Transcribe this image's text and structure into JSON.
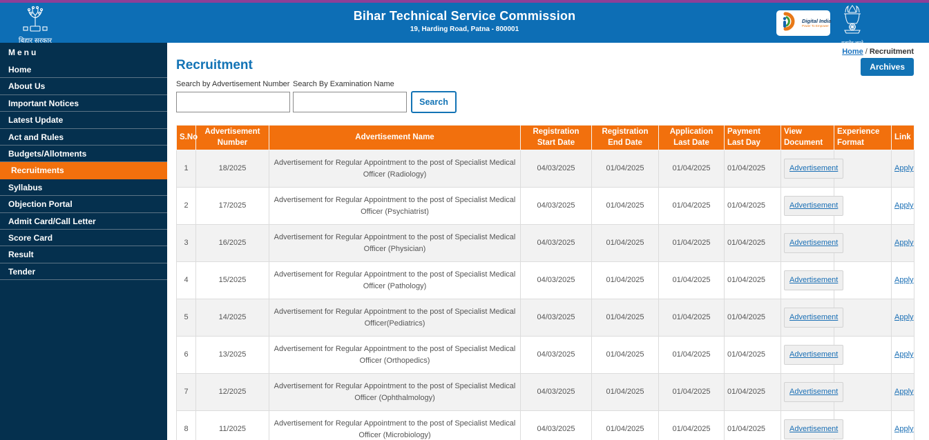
{
  "header": {
    "title": "Bihar Technical Service Commission",
    "subtitle": "19, Harding Road, Patna - 800001",
    "left_logo_caption": "बिहार सरकार",
    "digital_india_name": "Digital India",
    "digital_india_tagline": "Power To Empower",
    "emblem_caption": "सत्यमेव जयते"
  },
  "sidebar": {
    "menu_label": "Menu",
    "items": [
      {
        "label": "Home",
        "active": false
      },
      {
        "label": "About Us",
        "active": false
      },
      {
        "label": "Important Notices",
        "active": false
      },
      {
        "label": "Latest Update",
        "active": false
      },
      {
        "label": "Act and Rules",
        "active": false
      },
      {
        "label": "Budgets/Allotments",
        "active": false
      },
      {
        "label": "Recruitments",
        "active": true
      },
      {
        "label": "Syllabus",
        "active": false
      },
      {
        "label": "Objection Portal",
        "active": false
      },
      {
        "label": "Admit Card/Call Letter",
        "active": false
      },
      {
        "label": "Score Card",
        "active": false
      },
      {
        "label": "Result",
        "active": false
      },
      {
        "label": "Tender",
        "active": false
      }
    ]
  },
  "breadcrumb": {
    "home": "Home",
    "separator": "/",
    "current": "Recruitment"
  },
  "page": {
    "title": "Recruitment",
    "archives_button": "Archives"
  },
  "search": {
    "adv_label": "Search by Advertisement Number",
    "exam_label": "Search By Examination Name",
    "adv_value": "",
    "exam_value": "",
    "button": "Search"
  },
  "table": {
    "headers": [
      "S.No",
      "Advertisement Number",
      "Advertisement Name",
      "Registration Start Date",
      "Registration End Date",
      "Application Last Date",
      "Payment Last Day",
      "View Document",
      "Experience Format",
      "Link"
    ],
    "rows": [
      {
        "sno": "1",
        "adv_number": "18/2025",
        "adv_name": "Advertisement for Regular Appointment to the post of Specialist Medical Officer (Radiology)",
        "reg_start": "04/03/2025",
        "reg_end": "01/04/2025",
        "app_last": "01/04/2025",
        "payment_last": "01/04/2025",
        "view_document": "Advertisement",
        "experience_format": "",
        "link": "Apply"
      },
      {
        "sno": "2",
        "adv_number": "17/2025",
        "adv_name": "Advertisement for Regular Appointment to the post of Specialist Medical Officer (Psychiatrist)",
        "reg_start": "04/03/2025",
        "reg_end": "01/04/2025",
        "app_last": "01/04/2025",
        "payment_last": "01/04/2025",
        "view_document": "Advertisement",
        "experience_format": "",
        "link": "Apply"
      },
      {
        "sno": "3",
        "adv_number": "16/2025",
        "adv_name": "Advertisement for Regular Appointment to the post of Specialist Medical Officer (Physician)",
        "reg_start": "04/03/2025",
        "reg_end": "01/04/2025",
        "app_last": "01/04/2025",
        "payment_last": "01/04/2025",
        "view_document": "Advertisement",
        "experience_format": "",
        "link": "Apply"
      },
      {
        "sno": "4",
        "adv_number": "15/2025",
        "adv_name": "Advertisement for Regular Appointment to the post of Specialist Medical Officer (Pathology)",
        "reg_start": "04/03/2025",
        "reg_end": "01/04/2025",
        "app_last": "01/04/2025",
        "payment_last": "01/04/2025",
        "view_document": "Advertisement",
        "experience_format": "",
        "link": "Apply"
      },
      {
        "sno": "5",
        "adv_number": "14/2025",
        "adv_name": "Advertisement for Regular Appointment to the post of Specialist Medical Officer(Pediatrics)",
        "reg_start": "04/03/2025",
        "reg_end": "01/04/2025",
        "app_last": "01/04/2025",
        "payment_last": "01/04/2025",
        "view_document": "Advertisement",
        "experience_format": "",
        "link": "Apply"
      },
      {
        "sno": "6",
        "adv_number": "13/2025",
        "adv_name": "Advertisement for Regular Appointment to the post of Specialist Medical Officer (Orthopedics)",
        "reg_start": "04/03/2025",
        "reg_end": "01/04/2025",
        "app_last": "01/04/2025",
        "payment_last": "01/04/2025",
        "view_document": "Advertisement",
        "experience_format": "",
        "link": "Apply"
      },
      {
        "sno": "7",
        "adv_number": "12/2025",
        "adv_name": "Advertisement for Regular Appointment to the post of Specialist Medical Officer (Ophthalmology)",
        "reg_start": "04/03/2025",
        "reg_end": "01/04/2025",
        "app_last": "01/04/2025",
        "payment_last": "01/04/2025",
        "view_document": "Advertisement",
        "experience_format": "",
        "link": "Apply"
      },
      {
        "sno": "8",
        "adv_number": "11/2025",
        "adv_name": "Advertisement for Regular Appointment to the post of Specialist Medical Officer (Microbiology)",
        "reg_start": "04/03/2025",
        "reg_end": "01/04/2025",
        "app_last": "01/04/2025",
        "payment_last": "01/04/2025",
        "view_document": "Advertisement",
        "experience_format": "",
        "link": "Apply"
      }
    ]
  },
  "colors": {
    "header_blue": "#0d6eb5",
    "top_strip_purple": "#8e3f97",
    "sidebar_navy": "#05304e",
    "accent_orange": "#f2700d",
    "link_blue": "#1a6fb5",
    "row_alt_gray": "#f2f2f2"
  }
}
